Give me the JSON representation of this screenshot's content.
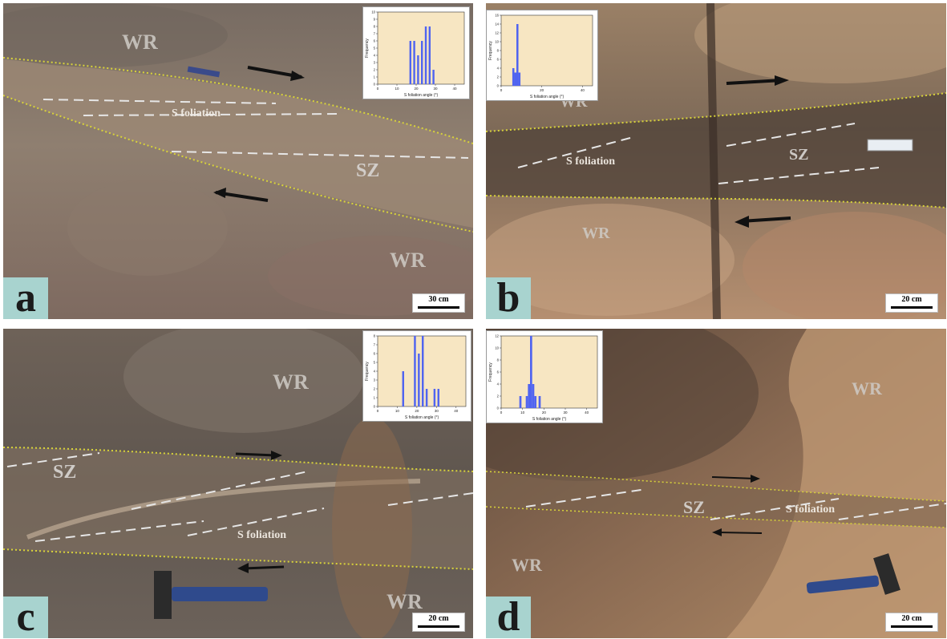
{
  "panels": [
    {
      "letter": "a",
      "scale": "30 cm",
      "labels": {
        "wr_top": "WR",
        "wr_bottom": "WR",
        "sz": "SZ",
        "sfoliation": "S foliation"
      },
      "histogram": {
        "ylabel": "Frequency",
        "xlabel": "S foliation angle (°)",
        "xticks": [
          "0",
          "10",
          "20",
          "30",
          "40"
        ],
        "yticks": [
          "0",
          "1",
          "2",
          "3",
          "4",
          "5",
          "6",
          "7",
          "8",
          "9",
          "10"
        ],
        "ymax": 10,
        "bins": [
          {
            "x": 17,
            "h": 6
          },
          {
            "x": 19,
            "h": 6
          },
          {
            "x": 21,
            "h": 4
          },
          {
            "x": 23,
            "h": 6
          },
          {
            "x": 25,
            "h": 8
          },
          {
            "x": 27,
            "h": 8
          },
          {
            "x": 29,
            "h": 2
          }
        ]
      }
    },
    {
      "letter": "b",
      "scale": "20 cm",
      "labels": {
        "wr_top": "WR",
        "wr_bottom": "WR",
        "sz": "SZ",
        "sfoliation": "S foliation"
      },
      "histogram": {
        "ylabel": "Frequency",
        "xlabel": "S foliation angle (°)",
        "xticks": [
          "0",
          "20",
          "40"
        ],
        "yticks": [
          "0",
          "2",
          "4",
          "6",
          "8",
          "10",
          "12",
          "14",
          "16"
        ],
        "ymax": 16,
        "bins": [
          {
            "x": 6,
            "h": 4
          },
          {
            "x": 7,
            "h": 3
          },
          {
            "x": 8,
            "h": 14
          },
          {
            "x": 9,
            "h": 3
          }
        ]
      }
    },
    {
      "letter": "c",
      "scale": "20 cm",
      "labels": {
        "wr_top": "WR",
        "wr_bottom": "WR",
        "sz": "SZ",
        "sfoliation": "S foliation"
      },
      "histogram": {
        "ylabel": "Frequency",
        "xlabel": "S foliation angle (°)",
        "xticks": [
          "0",
          "10",
          "20",
          "30",
          "40"
        ],
        "yticks": [
          "0",
          "1",
          "2",
          "3",
          "4",
          "5",
          "6",
          "7",
          "8"
        ],
        "ymax": 8,
        "bins": [
          {
            "x": 13,
            "h": 4
          },
          {
            "x": 19,
            "h": 8
          },
          {
            "x": 21,
            "h": 6
          },
          {
            "x": 23,
            "h": 8
          },
          {
            "x": 25,
            "h": 2
          },
          {
            "x": 29,
            "h": 2
          },
          {
            "x": 31,
            "h": 2
          }
        ]
      }
    },
    {
      "letter": "d",
      "scale": "20 cm",
      "labels": {
        "wr_top": "WR",
        "wr_bottom": "WR",
        "sz": "SZ",
        "sfoliation": "S foliation"
      },
      "histogram": {
        "ylabel": "Frequency",
        "xlabel": "S foliation angle (°)",
        "xticks": [
          "0",
          "10",
          "20",
          "30",
          "40"
        ],
        "yticks": [
          "0",
          "2",
          "4",
          "6",
          "8",
          "10",
          "12"
        ],
        "ymax": 12,
        "bins": [
          {
            "x": 9,
            "h": 2
          },
          {
            "x": 12,
            "h": 2
          },
          {
            "x": 13,
            "h": 4
          },
          {
            "x": 14,
            "h": 12
          },
          {
            "x": 15,
            "h": 4
          },
          {
            "x": 16,
            "h": 2
          },
          {
            "x": 18,
            "h": 2
          }
        ]
      }
    }
  ],
  "colors": {
    "bar_fill": "#5064f0",
    "inset_plot_bg": "#f7e6c2",
    "shear_zone_boundary": "#d8d33a",
    "foliation_trace": "#e6e6e6",
    "letter_box": "#a8d3cf"
  }
}
